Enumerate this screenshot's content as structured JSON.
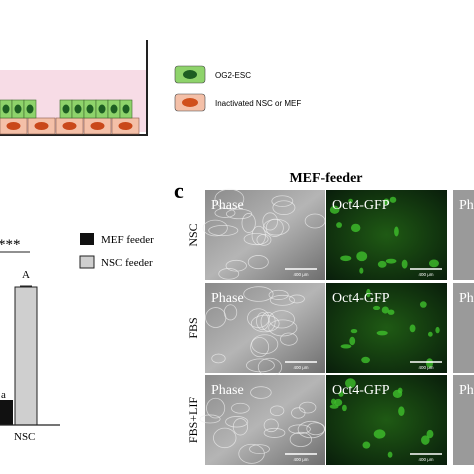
{
  "diagram": {
    "legend": [
      "OG2-ESC",
      "Inactivated NSC or MEF"
    ]
  },
  "bar_chart": {
    "significance": "***",
    "letter_high": "A",
    "letter_low": "a",
    "x_label": "NSC",
    "legend": [
      "MEF feeder",
      "NSC feeder"
    ]
  },
  "panel_c": {
    "letter": "c",
    "title": "MEF-feeder",
    "rows": [
      {
        "label": "NSC",
        "phase": "Phase",
        "gfp": "Oct4-GFP",
        "scale": [
          "400 μm",
          "400 μm"
        ],
        "partial": "Ph"
      },
      {
        "label": "FBS",
        "phase": "Phase",
        "gfp": "Oct4-GFP",
        "scale": [
          "400 μm",
          "400 μm"
        ],
        "partial": "Ph"
      },
      {
        "label": "FBS+LIF",
        "phase": "Phase",
        "gfp": "Oct4-GFP",
        "scale": [
          "400 μm",
          "400 μm"
        ],
        "partial": "Ph"
      }
    ]
  }
}
